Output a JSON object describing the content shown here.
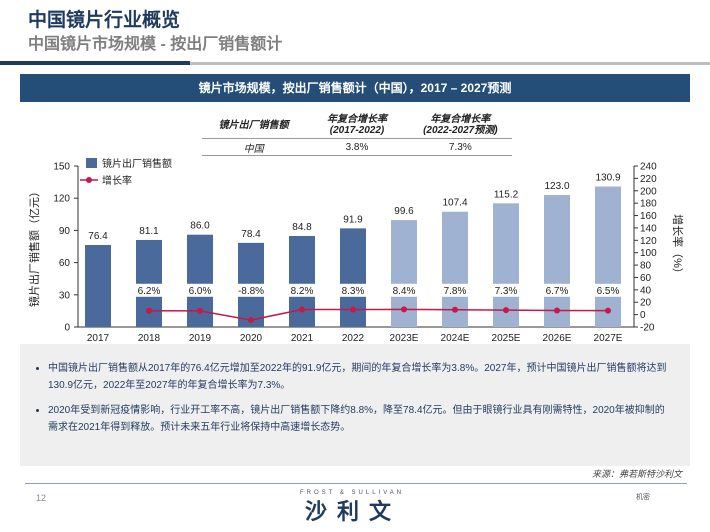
{
  "header": {
    "title": "中国镜片行业概览",
    "subtitle": "中国镜片市场规模 - 按出厂销售额计"
  },
  "banner": "镜片市场规模，按出厂销售额计（中国），2017 – 2027预测",
  "cagr_table": {
    "headers": [
      "镜片出厂销售额",
      "年复合增长率\n(2017-2022)",
      "年复合增长率\n(2022-2027预测)"
    ],
    "rows": [
      [
        "中国",
        "3.8%",
        "7.3%"
      ]
    ]
  },
  "chart_data": {
    "type": "bar+line",
    "categories": [
      "2017",
      "2018",
      "2019",
      "2020",
      "2021",
      "2022",
      "2023E",
      "2024E",
      "2025E",
      "2026E",
      "2027E"
    ],
    "series": [
      {
        "name": "镜片出厂销售额",
        "type": "bar",
        "axis": "left",
        "values": [
          76.4,
          81.1,
          86.0,
          78.4,
          84.8,
          91.9,
          99.6,
          107.4,
          115.2,
          123.0,
          130.9
        ],
        "labels": [
          "76.4",
          "81.1",
          "86.0",
          "78.4",
          "84.8",
          "91.9",
          "99.6",
          "107.4",
          "115.2",
          "123.0",
          "130.9"
        ],
        "colors": {
          "actual": "#4a6a9b",
          "forecast": "#9fb2d1"
        }
      },
      {
        "name": "增长率",
        "type": "line",
        "axis": "right",
        "values": [
          null,
          6.2,
          6.0,
          -8.8,
          8.2,
          8.3,
          8.4,
          7.8,
          7.3,
          6.7,
          6.5
        ],
        "labels": [
          "",
          "6.2%",
          "6.0%",
          "-8.8%",
          "8.2%",
          "8.3%",
          "8.4%",
          "7.8%",
          "7.3%",
          "6.7%",
          "6.5%"
        ],
        "color": "#c8174a"
      }
    ],
    "ylabel": "镜片出厂销售额（亿元）",
    "y2label": "增长率（%）",
    "ylim": [
      0,
      150
    ],
    "yticks": [
      "0",
      "30",
      "60",
      "90",
      "120",
      "150"
    ],
    "y2lim": [
      -20,
      240
    ],
    "y2ticks": [
      "-20",
      "0",
      "20",
      "40",
      "60",
      "80",
      "100",
      "120",
      "140",
      "160",
      "180",
      "200",
      "220",
      "240"
    ],
    "legend": "top-left",
    "grid": false
  },
  "notes": [
    "中国镜片出厂销售额从2017年的76.4亿元增加至2022年的91.9亿元，期间的年复合增长率为3.8%。2027年，预计中国镜片出厂销售额将达到130.9亿元，2022年至2027年的年复合增长率为7.3%。",
    "2020年受到新冠疫情影响，行业开工率不高，镜片出厂销售额下降约8.8%，降至78.4亿元。但由于眼镜行业具有刚需特性，2020年被抑制的需求在2021年得到释放。预计未来五年行业将保持中高速增长态势。"
  ],
  "footer": {
    "source": "来源：弗若斯特沙利文",
    "page": "12",
    "brand_en": "FROST & SULLIVAN",
    "brand_cn": "沙利文",
    "confidential": "机密"
  }
}
